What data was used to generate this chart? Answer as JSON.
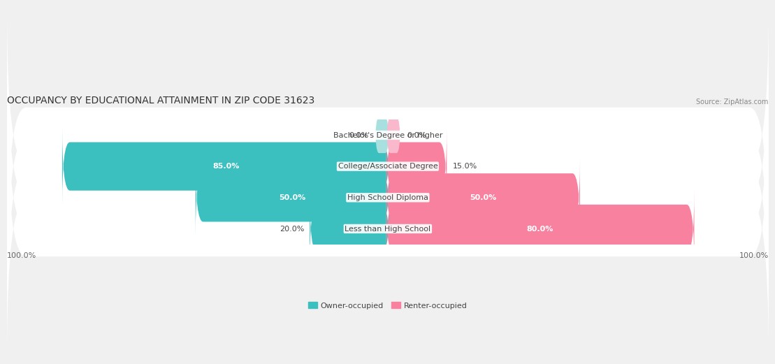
{
  "title": "OCCUPANCY BY EDUCATIONAL ATTAINMENT IN ZIP CODE 31623",
  "source": "Source: ZipAtlas.com",
  "categories": [
    "Less than High School",
    "High School Diploma",
    "College/Associate Degree",
    "Bachelor's Degree or higher"
  ],
  "owner_pct": [
    20.0,
    50.0,
    85.0,
    0.0
  ],
  "renter_pct": [
    80.0,
    50.0,
    15.0,
    0.0
  ],
  "owner_color": "#3bbfbf",
  "renter_color": "#f7819f",
  "owner_color_light": "#a8e0e0",
  "renter_color_light": "#f9b8cc",
  "bg_color": "#f0f0f0",
  "bar_bg": "#ffffff",
  "bar_height": 0.55,
  "title_fontsize": 10,
  "label_fontsize": 8,
  "axis_label_fontsize": 8,
  "legend_fontsize": 8,
  "source_fontsize": 7,
  "x_left_label": "100.0%",
  "x_right_label": "100.0%"
}
